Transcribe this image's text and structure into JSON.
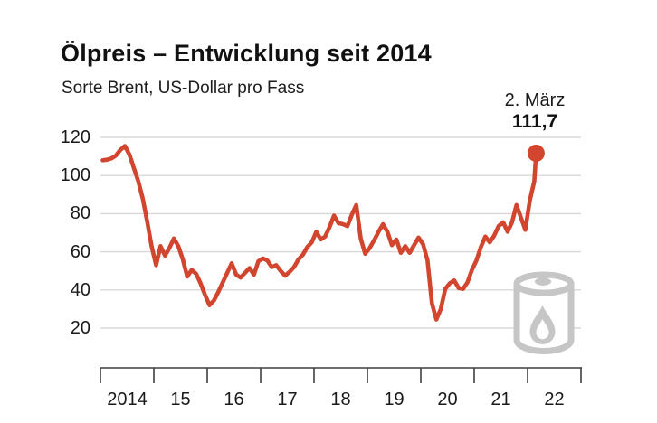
{
  "header": {
    "title": "Ölpreis – Entwicklung seit 2014",
    "subtitle": "Sorte Brent, US-Dollar pro Fass"
  },
  "annotation": {
    "date_label": "2. März",
    "value_label": "111,7"
  },
  "colors": {
    "line": "#d2452f",
    "dot": "#d2452f",
    "grid": "#d8d8d8",
    "axis": "#3f3f3f",
    "text": "#1a1a1a",
    "icon": "#c6c6c6"
  },
  "chart_data": {
    "type": "line",
    "title": "Ölpreis – Entwicklung seit 2014",
    "subtitle": "Sorte Brent, US-Dollar pro Fass",
    "series_name": "Brent-Ölpreis (US-Dollar pro Fass)",
    "grid": true,
    "legend": false,
    "x_start_year": 2014,
    "x_tick_labels": [
      "2014",
      "15",
      "16",
      "17",
      "18",
      "19",
      "20",
      "21",
      "22"
    ],
    "y_ticks": [
      120,
      100,
      80,
      60,
      40,
      20
    ],
    "y_axis_range": [
      20,
      120
    ],
    "monthly_values": [
      108,
      108.3,
      109,
      110.5,
      113.5,
      115.5,
      111,
      104,
      97,
      88,
      76,
      63,
      53,
      63,
      58,
      62,
      67,
      63,
      56,
      47,
      50.5,
      48.5,
      43.5,
      37.5,
      32,
      34.5,
      39,
      44,
      49,
      54,
      48,
      46.5,
      49,
      51.5,
      48,
      55,
      56.5,
      55.5,
      52,
      53,
      50,
      47.5,
      49.5,
      52,
      56,
      58.5,
      62.5,
      65,
      70.5,
      66.5,
      68,
      73,
      79,
      75,
      74.5,
      73.5,
      79.5,
      84.5,
      67,
      59,
      62,
      66,
      70.5,
      74.5,
      70.5,
      63.5,
      66.5,
      59.5,
      63,
      59.5,
      63.5,
      67.5,
      64,
      55.5,
      33,
      24.5,
      30,
      40.5,
      43.5,
      45,
      41,
      40.5,
      44,
      50.5,
      55.5,
      62.5,
      68,
      65,
      68.5,
      73.5,
      75.5,
      70.5,
      75.5,
      84.5,
      78,
      71.5,
      87,
      97
    ],
    "end_point": {
      "label": "2. März",
      "value": 111.7,
      "years_since_2014": 8.16
    }
  }
}
